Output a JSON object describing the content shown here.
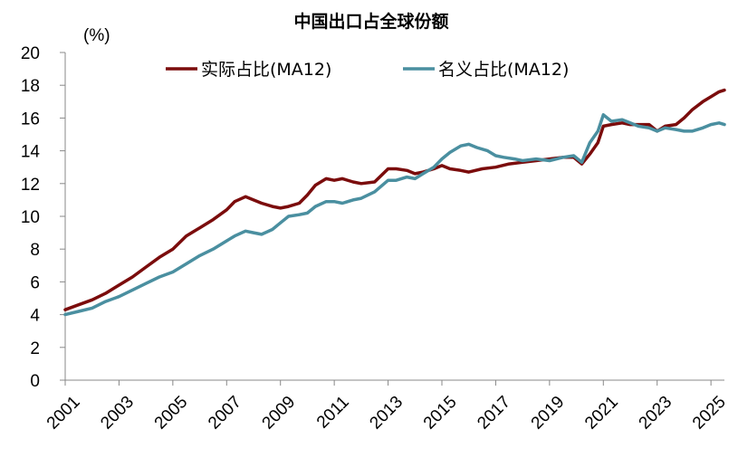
{
  "chart_data": {
    "type": "line",
    "title": "中国出口占全球份额",
    "ylabel": "(%)",
    "ylim": [
      0,
      20
    ],
    "yticks": [
      0,
      2,
      4,
      6,
      8,
      10,
      12,
      14,
      16,
      18,
      20
    ],
    "xlim": [
      2001.0,
      2025.5
    ],
    "xticks": [
      "2001",
      "2003",
      "2005",
      "2007",
      "2009",
      "2011",
      "2013",
      "2015",
      "2017",
      "2019",
      "2021",
      "2023",
      "2025"
    ],
    "grid": false,
    "legend": "top",
    "series": [
      {
        "name": "实际占比(MA12)",
        "color": "#7B0C0C",
        "x": [
          2001.0,
          2001.5,
          2002.0,
          2002.5,
          2003.0,
          2003.5,
          2004.0,
          2004.5,
          2005.0,
          2005.5,
          2006.0,
          2006.5,
          2007.0,
          2007.3,
          2007.7,
          2008.0,
          2008.3,
          2008.7,
          2009.0,
          2009.3,
          2009.7,
          2010.0,
          2010.3,
          2010.7,
          2011.0,
          2011.3,
          2011.7,
          2012.0,
          2012.5,
          2013.0,
          2013.3,
          2013.7,
          2014.0,
          2014.3,
          2014.7,
          2015.0,
          2015.3,
          2015.7,
          2016.0,
          2016.5,
          2017.0,
          2017.5,
          2018.0,
          2018.5,
          2019.0,
          2019.5,
          2019.9,
          2020.2,
          2020.5,
          2020.8,
          2021.0,
          2021.3,
          2021.7,
          2022.0,
          2022.3,
          2022.7,
          2023.0,
          2023.3,
          2023.7,
          2024.0,
          2024.3,
          2024.7,
          2025.0,
          2025.3,
          2025.5
        ],
        "values": [
          4.3,
          4.6,
          4.9,
          5.3,
          5.8,
          6.3,
          6.9,
          7.5,
          8.0,
          8.8,
          9.3,
          9.8,
          10.4,
          10.9,
          11.2,
          11.0,
          10.8,
          10.6,
          10.5,
          10.6,
          10.8,
          11.3,
          11.9,
          12.3,
          12.2,
          12.3,
          12.1,
          12.0,
          12.1,
          12.9,
          12.9,
          12.8,
          12.6,
          12.7,
          12.9,
          13.1,
          12.9,
          12.8,
          12.7,
          12.9,
          13.0,
          13.2,
          13.3,
          13.4,
          13.5,
          13.6,
          13.6,
          13.2,
          13.8,
          14.5,
          15.5,
          15.6,
          15.7,
          15.6,
          15.6,
          15.6,
          15.2,
          15.5,
          15.6,
          16.0,
          16.5,
          17.0,
          17.3,
          17.6,
          17.7
        ]
      },
      {
        "name": "名义占比(MA12)",
        "color": "#4A8FA0",
        "x": [
          2001.0,
          2001.5,
          2002.0,
          2002.5,
          2003.0,
          2003.5,
          2004.0,
          2004.5,
          2005.0,
          2005.5,
          2006.0,
          2006.5,
          2007.0,
          2007.3,
          2007.7,
          2008.0,
          2008.3,
          2008.7,
          2009.0,
          2009.3,
          2009.7,
          2010.0,
          2010.3,
          2010.7,
          2011.0,
          2011.3,
          2011.7,
          2012.0,
          2012.5,
          2013.0,
          2013.3,
          2013.7,
          2014.0,
          2014.3,
          2014.7,
          2015.0,
          2015.3,
          2015.7,
          2016.0,
          2016.3,
          2016.7,
          2017.0,
          2017.3,
          2017.7,
          2018.0,
          2018.5,
          2019.0,
          2019.5,
          2019.9,
          2020.2,
          2020.5,
          2020.8,
          2021.0,
          2021.3,
          2021.7,
          2022.0,
          2022.3,
          2022.7,
          2023.0,
          2023.3,
          2023.7,
          2024.0,
          2024.3,
          2024.7,
          2025.0,
          2025.3,
          2025.5
        ],
        "values": [
          4.0,
          4.2,
          4.4,
          4.8,
          5.1,
          5.5,
          5.9,
          6.3,
          6.6,
          7.1,
          7.6,
          8.0,
          8.5,
          8.8,
          9.1,
          9.0,
          8.9,
          9.2,
          9.6,
          10.0,
          10.1,
          10.2,
          10.6,
          10.9,
          10.9,
          10.8,
          11.0,
          11.1,
          11.5,
          12.2,
          12.2,
          12.4,
          12.3,
          12.6,
          13.0,
          13.5,
          13.9,
          14.3,
          14.4,
          14.2,
          14.0,
          13.7,
          13.6,
          13.5,
          13.4,
          13.5,
          13.4,
          13.6,
          13.7,
          13.3,
          14.5,
          15.2,
          16.2,
          15.8,
          15.9,
          15.7,
          15.5,
          15.4,
          15.2,
          15.4,
          15.3,
          15.2,
          15.2,
          15.4,
          15.6,
          15.7,
          15.6
        ]
      }
    ]
  }
}
